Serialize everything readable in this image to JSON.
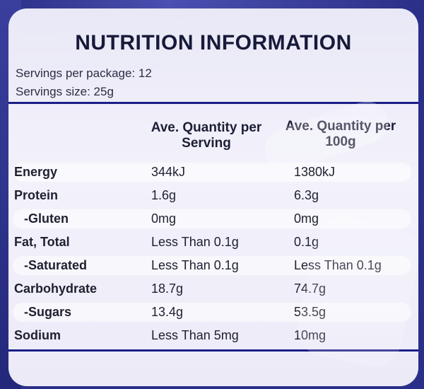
{
  "panel": {
    "title": "NUTRITION INFORMATION",
    "servings_per_package": "Servings per package: 12",
    "serving_size": "Servings size: 25g"
  },
  "columns": {
    "per_serving": "Ave. Quantity per Serving",
    "per_100g": "Ave. Quantity per 100g"
  },
  "rows": [
    {
      "name": "Energy",
      "per_serving": "344kJ",
      "per_100g": "1380kJ"
    },
    {
      "name": "Protein",
      "per_serving": "1.6g",
      "per_100g": "6.3g"
    },
    {
      "name": "-Gluten",
      "per_serving": "0mg",
      "per_100g": "0mg"
    },
    {
      "name": "Fat, Total",
      "per_serving": "Less Than 0.1g",
      "per_100g": "0.1g"
    },
    {
      "name": "-Saturated",
      "per_serving": "Less Than 0.1g",
      "per_100g": "Less Than 0.1g"
    },
    {
      "name": "Carbohydrate",
      "per_serving": "18.7g",
      "per_100g": "74.7g"
    },
    {
      "name": "-Sugars",
      "per_serving": "13.4g",
      "per_100g": "53.5g"
    },
    {
      "name": "Sodium",
      "per_serving": "Less Than 5mg",
      "per_100g": "10mg"
    }
  ],
  "colors": {
    "rule": "#1a1f86",
    "package": "#2a2f8a",
    "label": "#eceaf7"
  }
}
